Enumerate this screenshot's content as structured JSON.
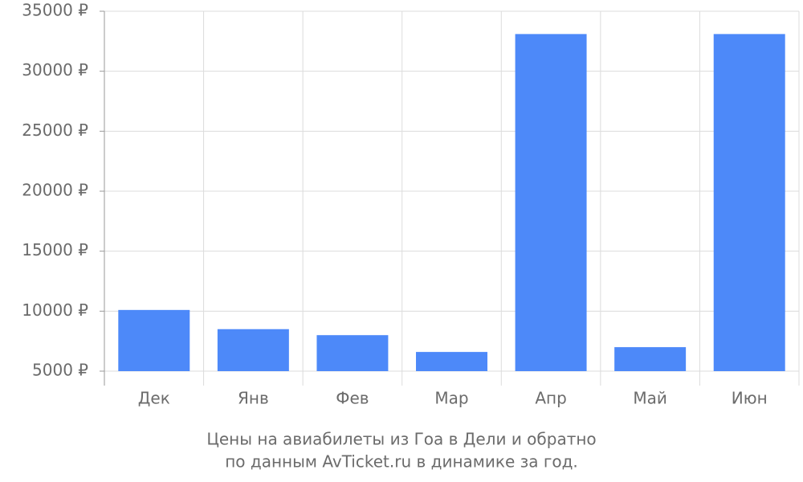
{
  "chart_data": {
    "type": "bar",
    "title": "Цены на авиабилеты из Гоа в Дели и обратно",
    "subtitle": "по данным AvTicket.ru в динамике за год.",
    "categories": [
      "Дек",
      "Янв",
      "Фев",
      "Мар",
      "Апр",
      "Май",
      "Июн"
    ],
    "values": [
      10100,
      8500,
      8000,
      6600,
      33100,
      7000,
      33100
    ],
    "color": "#4d89f9",
    "ylim": [
      5000,
      35000
    ],
    "yticks": [
      {
        "value": 5000,
        "label": "5000 ₽"
      },
      {
        "value": 10000,
        "label": "10000 ₽"
      },
      {
        "value": 15000,
        "label": "15000 ₽"
      },
      {
        "value": 20000,
        "label": "20000 ₽"
      },
      {
        "value": 25000,
        "label": "25000 ₽"
      },
      {
        "value": 30000,
        "label": "30000 ₽"
      },
      {
        "value": 35000,
        "label": "35000 ₽"
      }
    ],
    "grid": true
  }
}
